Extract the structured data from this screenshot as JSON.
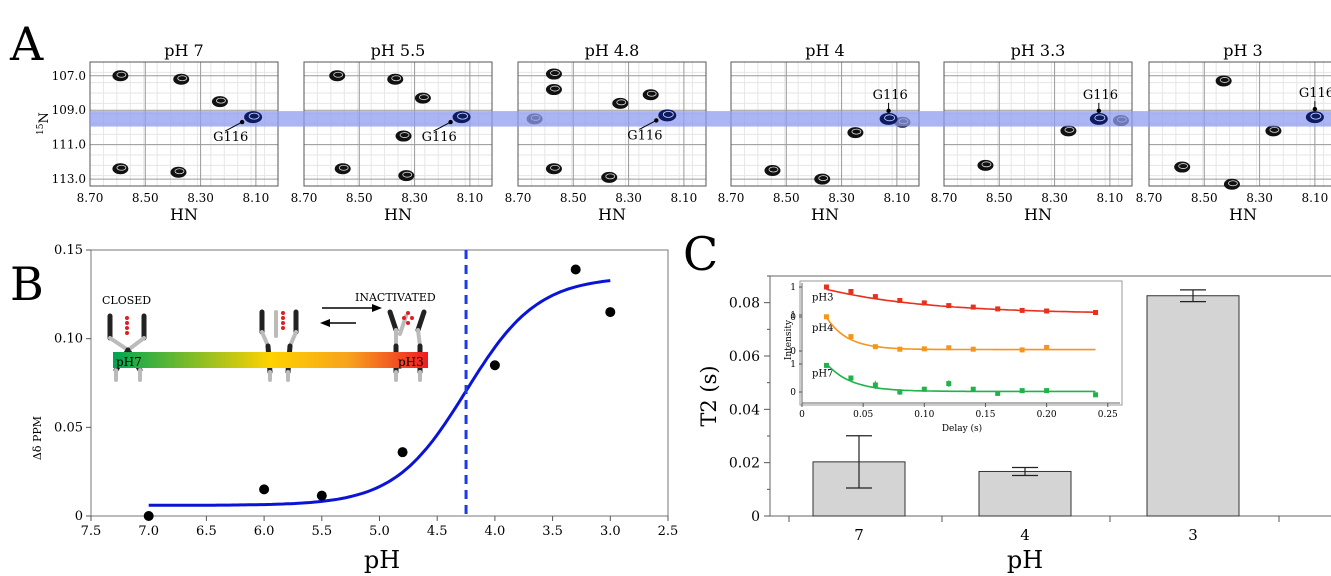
{
  "panel_letters": [
    "A",
    "B",
    "C"
  ],
  "chart_data": [
    {
      "type": "scatter",
      "panel": "A",
      "subtype": "nmr-hsqc-spectra",
      "xlabel": "HN",
      "ylabel": "15N",
      "ylabel_sup": "15",
      "ylabel_base": "N",
      "x_ticks": [
        "8.70",
        "8.50",
        "8.30",
        "8.10"
      ],
      "y_ticks": [
        "107.0",
        "109.0",
        "111.0",
        "113.0"
      ],
      "xlim": [
        8.7,
        8.02
      ],
      "ylim": [
        106.2,
        113.4
      ],
      "highlight_band_15N": [
        109.05,
        109.95
      ],
      "highlight_color": "#8f9cf0",
      "peak_label": "G116",
      "spectra": [
        {
          "title": "pH 7",
          "peaks": [
            [
              8.59,
              107.0
            ],
            [
              8.37,
              107.2
            ],
            [
              8.23,
              108.5
            ],
            [
              8.59,
              112.4
            ],
            [
              8.38,
              112.6
            ]
          ],
          "g116": [
            8.11,
            109.4
          ]
        },
        {
          "title": "pH 5.5",
          "peaks": [
            [
              8.58,
              107.0
            ],
            [
              8.37,
              107.2
            ],
            [
              8.27,
              108.3
            ],
            [
              8.56,
              112.4
            ],
            [
              8.33,
              112.8
            ],
            [
              8.34,
              110.5
            ]
          ],
          "g116": [
            8.13,
            109.4
          ]
        },
        {
          "title": "pH 4.8",
          "peaks": [
            [
              8.57,
              106.9
            ],
            [
              8.57,
              107.8
            ],
            [
              8.33,
              108.6
            ],
            [
              8.22,
              108.1
            ],
            [
              8.57,
              112.4
            ],
            [
              8.37,
              112.9
            ],
            [
              8.64,
              109.5
            ]
          ],
          "g116": [
            8.16,
            109.3
          ]
        },
        {
          "title": "pH 4",
          "peaks": [
            [
              8.25,
              110.3
            ],
            [
              8.08,
              109.7
            ],
            [
              8.55,
              112.5
            ],
            [
              8.37,
              113.0
            ]
          ],
          "g116": [
            8.13,
            109.5
          ]
        },
        {
          "title": "pH 3.3",
          "peaks": [
            [
              8.25,
              110.2
            ],
            [
              8.06,
              109.6
            ],
            [
              8.55,
              112.2
            ]
          ],
          "g116": [
            8.14,
            109.5
          ]
        },
        {
          "title": "pH 3",
          "peaks": [
            [
              8.25,
              110.2
            ],
            [
              8.58,
              112.3
            ],
            [
              8.4,
              113.3
            ],
            [
              8.43,
              107.3
            ]
          ],
          "g116": [
            8.1,
            109.4
          ]
        }
      ]
    },
    {
      "type": "scatter",
      "panel": "B",
      "xlabel": "pH",
      "ylabel": "Δδ PPM",
      "xlim": [
        7.5,
        2.5
      ],
      "ylim": [
        0,
        0.15
      ],
      "x_ticks": [
        "7.5",
        "7.0",
        "6.5",
        "6.0",
        "5.5",
        "5.0",
        "4.5",
        "4.0",
        "3.5",
        "3.0",
        "2.5"
      ],
      "y_ticks": [
        "0",
        "0.05",
        "0.10",
        "0.15"
      ],
      "points": [
        {
          "x": 7.0,
          "y": 0.0
        },
        {
          "x": 6.0,
          "y": 0.015
        },
        {
          "x": 5.5,
          "y": 0.0115
        },
        {
          "x": 4.8,
          "y": 0.036
        },
        {
          "x": 4.0,
          "y": 0.085
        },
        {
          "x": 3.3,
          "y": 0.139
        },
        {
          "x": 3.0,
          "y": 0.115
        }
      ],
      "fit": {
        "type": "sigmoid",
        "bottom": 0.006,
        "top": 0.135,
        "pKa": 4.25,
        "slope": 1.4
      },
      "vline_x": 4.25,
      "fit_color": "#0a14d8",
      "vline_color": "#1b3be6",
      "inset": {
        "label_closed": "CLOSED",
        "label_inactivated": "INACTIVATED",
        "gradient_left": "pH7",
        "gradient_right": "pH3",
        "gradient_colors": [
          "#00a651",
          "#ffd200",
          "#ee1c25"
        ]
      }
    },
    {
      "type": "bar",
      "panel": "C",
      "xlabel": "pH",
      "ylabel": "T2 (s)",
      "categories": [
        "7",
        "4",
        "3"
      ],
      "values": [
        0.0203,
        0.0167,
        0.0826
      ],
      "errors": [
        0.0098,
        0.0015,
        0.0022
      ],
      "ylim": [
        0,
        0.09
      ],
      "y_ticks": [
        "0",
        "0.02",
        "0.04",
        "0.06",
        "0.08"
      ],
      "bar_color": "#d4d4d4",
      "inset": {
        "type": "line",
        "xlabel": "Delay (s)",
        "ylabel": "Intensity",
        "x_ticks": [
          "0",
          "0.05",
          "0.10",
          "0.15",
          "0.20",
          "0.25"
        ],
        "xlim": [
          0,
          0.26
        ],
        "series": [
          {
            "name": "pH3",
            "color": "#e8301c",
            "x": [
              0.02,
              0.04,
              0.06,
              0.08,
              0.1,
              0.12,
              0.14,
              0.16,
              0.18,
              0.2,
              0.24
            ],
            "y": [
              1.0,
              0.85,
              0.68,
              0.55,
              0.47,
              0.38,
              0.33,
              0.27,
              0.22,
              0.2,
              0.15
            ],
            "fit_amp": 1.05,
            "fit_T2": 0.083,
            "fit_base": 0.1
          },
          {
            "name": "pH4",
            "color": "#f7941d",
            "x": [
              0.02,
              0.04,
              0.06,
              0.08,
              0.1,
              0.12,
              0.14,
              0.18,
              0.2
            ],
            "y": [
              0.95,
              0.4,
              0.12,
              0.05,
              0.06,
              0.09,
              0.05,
              0.03,
              0.1
            ],
            "fit_amp": 2.9,
            "fit_T2": 0.017,
            "fit_base": 0.04
          },
          {
            "name": "pH7",
            "color": "#1fb34a",
            "x": [
              0.02,
              0.04,
              0.06,
              0.08,
              0.1,
              0.12,
              0.14,
              0.16,
              0.18,
              0.2,
              0.24
            ],
            "y": [
              0.95,
              0.5,
              0.25,
              0.0,
              0.1,
              0.3,
              0.1,
              -0.05,
              0.05,
              0.05,
              -0.1
            ],
            "fit_amp": 2.7,
            "fit_T2": 0.02,
            "fit_base": 0.02,
            "errors": [
              0,
              0,
              0.15,
              0.1,
              0,
              0.12,
              0,
              0,
              0,
              0,
              0
            ]
          }
        ]
      }
    }
  ]
}
